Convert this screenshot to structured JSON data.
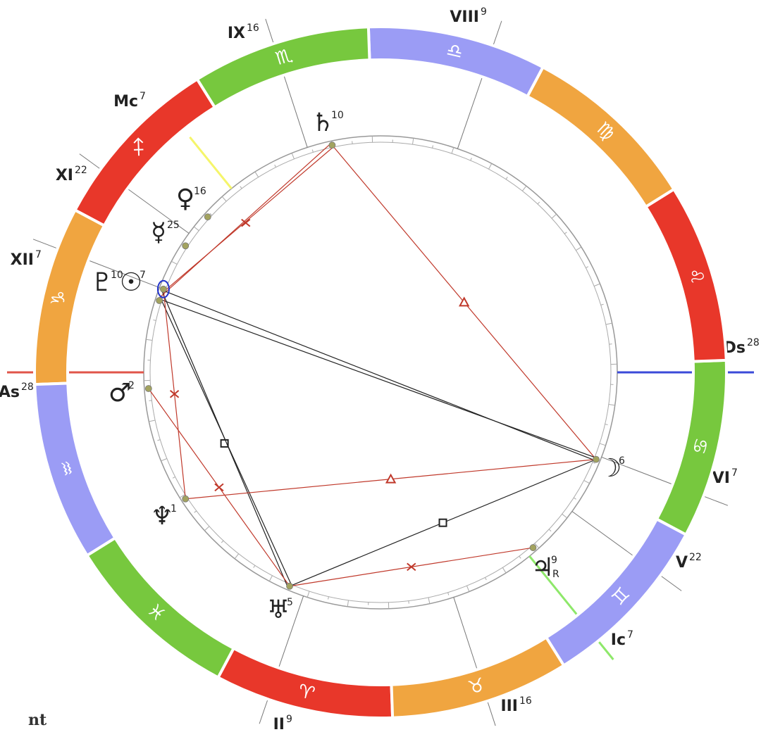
{
  "zodiac": [
    "♈︎",
    "♉︎",
    "♊︎",
    "♋︎",
    "♌︎",
    "♍︎",
    "♎︎",
    "♏︎",
    "♐︎",
    "♑︎",
    "♒︎",
    "♓︎"
  ],
  "houses": [
    {
      "label": "IX",
      "degree": 16
    },
    {
      "label": "VIII",
      "degree": 9
    },
    {
      "label": "Mc",
      "degree": 7
    },
    {
      "label": "XI",
      "degree": 22
    },
    {
      "label": "XII",
      "degree": 7
    },
    {
      "label": "As",
      "degree": 28
    },
    {
      "label": "Ds",
      "degree": 28
    },
    {
      "label": "VI",
      "degree": 7
    },
    {
      "label": "V",
      "degree": 22
    },
    {
      "label": "Ic",
      "degree": 7
    },
    {
      "label": "III",
      "degree": 16
    },
    {
      "label": "II",
      "degree": 9
    }
  ],
  "planets": [
    {
      "glyph": "♄",
      "degree": 10
    },
    {
      "glyph": "♀",
      "degree": 16
    },
    {
      "glyph": "☿",
      "degree": 25
    },
    {
      "glyph": "♇",
      "degree": 10
    },
    {
      "glyph": "☉",
      "degree": 7
    },
    {
      "glyph": "♂",
      "degree": 2
    },
    {
      "glyph": "♆",
      "degree": 1
    },
    {
      "glyph": "♅",
      "degree": 5
    },
    {
      "glyph": "♃",
      "degree": 9,
      "retrograde": "R"
    },
    {
      "glyph": "☽",
      "degree": 6
    }
  ],
  "footer": "nt"
}
